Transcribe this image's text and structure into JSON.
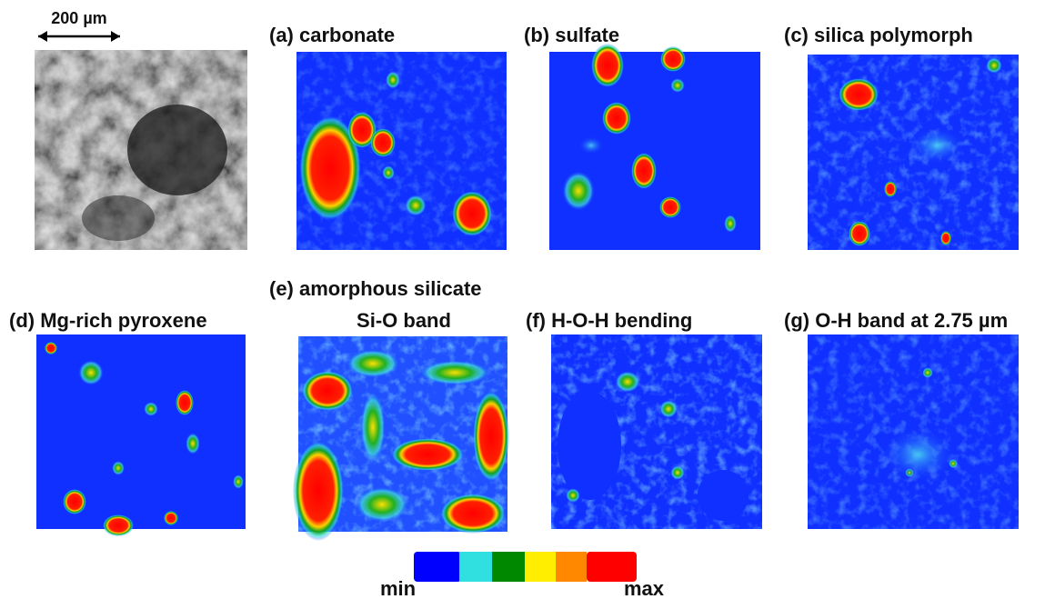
{
  "scale_bar": {
    "label": "200 µm"
  },
  "panels": [
    {
      "title": "(a) carbonate"
    },
    {
      "title": "(b) sulfate"
    },
    {
      "title": "(c) silica polymorph"
    },
    {
      "title": "(d) Mg-rich pyroxene"
    },
    {
      "title": "(e) amorphous silicate",
      "title_line_2": "Si-O band"
    },
    {
      "title": "(f) H-O-H bending"
    },
    {
      "title": "(g) O-H band at 2.75 µm"
    }
  ],
  "colorbar": {
    "min_label": "min",
    "max_label": "max"
  }
}
